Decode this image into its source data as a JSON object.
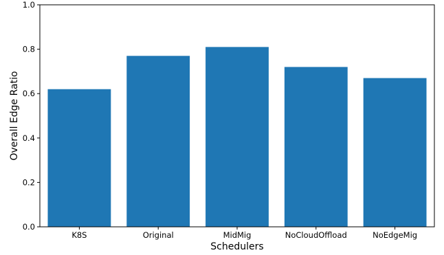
{
  "chart_data": {
    "type": "bar",
    "xlabel": "Schedulers",
    "ylabel": "Overall Edge Ratio",
    "categories": [
      "K8S",
      "Original",
      "MidMig",
      "NoCloudOffload",
      "NoEdgeMig"
    ],
    "values": [
      0.62,
      0.77,
      0.81,
      0.72,
      0.67
    ],
    "ylim": [
      0.0,
      1.0
    ],
    "yticks": [
      "0.0",
      "0.2",
      "0.4",
      "0.6",
      "0.8",
      "1.0"
    ],
    "bar_color": "#1f77b4",
    "grid": false,
    "legend": "none"
  }
}
